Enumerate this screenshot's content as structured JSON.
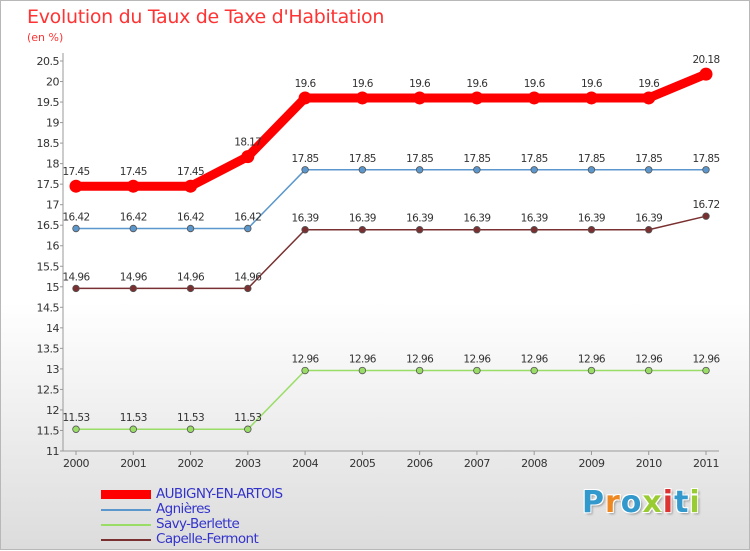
{
  "title": "Evolution du Taux de Taxe d'Habitation",
  "subtitle": "(en %)",
  "logo_text": "Proxiti",
  "chart_data": {
    "type": "line",
    "title": "Evolution du Taux de Taxe d'Habitation",
    "ylabel": "(en %)",
    "xlabel": "",
    "x": [
      "2000",
      "2001",
      "2002",
      "2003",
      "2004",
      "2005",
      "2006",
      "2007",
      "2008",
      "2009",
      "2010",
      "2011"
    ],
    "ylim": [
      11,
      20.5
    ],
    "yticks": [
      "11",
      "11.5",
      "12",
      "12.5",
      "13",
      "13.5",
      "14",
      "14.5",
      "15",
      "15.5",
      "16",
      "16.5",
      "17",
      "17.5",
      "18",
      "18.5",
      "19",
      "19.5",
      "20",
      "20.5"
    ],
    "grid": false,
    "legend_position": "bottom-left",
    "series": [
      {
        "name": "AUBIGNY-EN-ARTOIS",
        "color": "#ff0000",
        "values": [
          17.45,
          17.45,
          17.45,
          18.17,
          19.6,
          19.6,
          19.6,
          19.6,
          19.6,
          19.6,
          19.6,
          20.18
        ],
        "labels": [
          "17.45",
          "17.45",
          "17.45",
          "18.17",
          "19.6",
          "19.6",
          "19.6",
          "19.6",
          "19.6",
          "19.6",
          "19.6",
          "20.18"
        ]
      },
      {
        "name": "Agnières",
        "color": "#5b97cc",
        "values": [
          16.42,
          16.42,
          16.42,
          16.42,
          17.85,
          17.85,
          17.85,
          17.85,
          17.85,
          17.85,
          17.85,
          17.85
        ],
        "labels": [
          "16.42",
          "16.42",
          "16.42",
          "16.42",
          "17.85",
          "17.85",
          "17.85",
          "17.85",
          "17.85",
          "17.85",
          "17.85",
          "17.85"
        ]
      },
      {
        "name": "Savy-Berlette",
        "color": "#99dd66",
        "values": [
          11.53,
          11.53,
          11.53,
          11.53,
          12.96,
          12.96,
          12.96,
          12.96,
          12.96,
          12.96,
          12.96,
          12.96
        ],
        "labels": [
          "11.53",
          "11.53",
          "11.53",
          "11.53",
          "12.96",
          "12.96",
          "12.96",
          "12.96",
          "12.96",
          "12.96",
          "12.96",
          "12.96"
        ]
      },
      {
        "name": "Capelle-Fermont",
        "color": "#7a3030",
        "values": [
          14.96,
          14.96,
          14.96,
          14.96,
          16.39,
          16.39,
          16.39,
          16.39,
          16.39,
          16.39,
          16.39,
          16.72
        ],
        "labels": [
          "14.96",
          "14.96",
          "14.96",
          "14.96",
          "16.39",
          "16.39",
          "16.39",
          "16.39",
          "16.39",
          "16.39",
          "16.39",
          "16.72"
        ]
      }
    ]
  }
}
